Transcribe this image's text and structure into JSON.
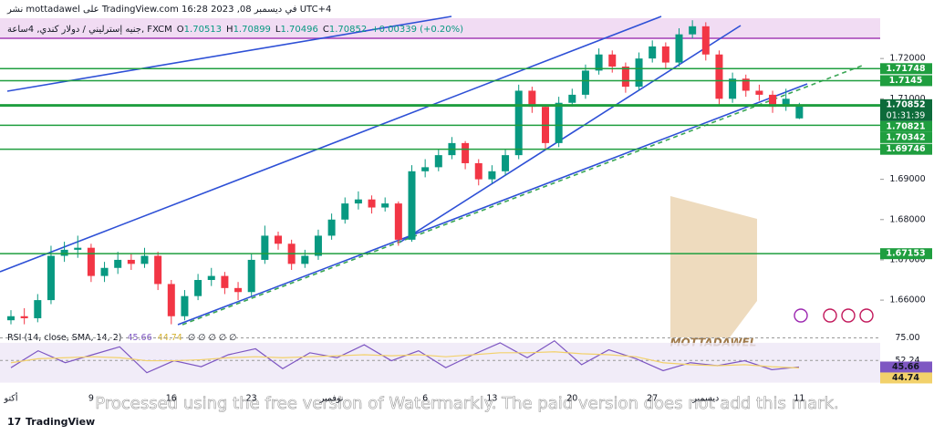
{
  "header": {
    "publisher": "نشر mottadawel على TradingView.com في ديسمبر 08, 2023 16:28 UTC+4",
    "symbol": "جنيه إسترليني / دولار كندي, 4ساعة, FXCM",
    "ohlc": [
      {
        "key": "O",
        "value": "1.70513"
      },
      {
        "key": "H",
        "value": "1.70899"
      },
      {
        "key": "L",
        "value": "1.70496"
      },
      {
        "key": "C",
        "value": "1.70852"
      }
    ],
    "change": "+0.00339 (+0.20%)"
  },
  "watermark": "Processed using the free version of Watermarkly. The paid version does not add this mark.",
  "logo": "MOTTADAWEL",
  "branding": "TradingView",
  "chart_data": [
    {
      "type": "candlestick",
      "color_up": "#089981",
      "color_down": "#f23645",
      "categories": [
        "أكتو",
        null,
        null,
        null,
        null,
        null,
        "9",
        null,
        null,
        null,
        null,
        null,
        "16",
        null,
        null,
        null,
        null,
        null,
        "23",
        null,
        null,
        null,
        null,
        null,
        "نوفمبر",
        null,
        null,
        null,
        null,
        null,
        null,
        "6",
        null,
        null,
        null,
        null,
        "13",
        null,
        null,
        null,
        null,
        null,
        "20",
        null,
        null,
        null,
        null,
        null,
        "27",
        null,
        null,
        null,
        "ديسمبر",
        null,
        null,
        null,
        null,
        null,
        null,
        "11"
      ],
      "candles": [
        [
          1.655,
          1.6575,
          1.654,
          1.656
        ],
        [
          1.656,
          1.658,
          1.654,
          1.6555
        ],
        [
          1.6555,
          1.6615,
          1.6545,
          1.66
        ],
        [
          1.66,
          1.6735,
          1.659,
          1.671
        ],
        [
          1.671,
          1.6745,
          1.6695,
          1.6725
        ],
        [
          1.6725,
          1.676,
          1.6705,
          1.673
        ],
        [
          1.673,
          1.674,
          1.6645,
          1.666
        ],
        [
          1.666,
          1.6695,
          1.6645,
          1.668
        ],
        [
          1.668,
          1.672,
          1.6665,
          1.67
        ],
        [
          1.67,
          1.6715,
          1.6675,
          1.669
        ],
        [
          1.669,
          1.673,
          1.668,
          1.671
        ],
        [
          1.671,
          1.672,
          1.6625,
          1.664
        ],
        [
          1.664,
          1.665,
          1.654,
          1.656
        ],
        [
          1.656,
          1.6625,
          1.655,
          1.661
        ],
        [
          1.661,
          1.6665,
          1.66,
          1.665
        ],
        [
          1.665,
          1.668,
          1.6635,
          1.666
        ],
        [
          1.666,
          1.667,
          1.6615,
          1.663
        ],
        [
          1.663,
          1.6645,
          1.66,
          1.662
        ],
        [
          1.662,
          1.6715,
          1.661,
          1.67
        ],
        [
          1.67,
          1.6785,
          1.669,
          1.676
        ],
        [
          1.676,
          1.677,
          1.6725,
          1.674
        ],
        [
          1.674,
          1.675,
          1.6675,
          1.669
        ],
        [
          1.669,
          1.6725,
          1.668,
          1.671
        ],
        [
          1.671,
          1.6775,
          1.67,
          1.676
        ],
        [
          1.676,
          1.6815,
          1.675,
          1.68
        ],
        [
          1.68,
          1.6855,
          1.679,
          1.684
        ],
        [
          1.684,
          1.687,
          1.6825,
          1.685
        ],
        [
          1.685,
          1.686,
          1.6815,
          1.683
        ],
        [
          1.683,
          1.6855,
          1.682,
          1.684
        ],
        [
          1.684,
          1.6845,
          1.6735,
          1.675
        ],
        [
          1.675,
          1.6935,
          1.6745,
          1.692
        ],
        [
          1.692,
          1.695,
          1.6905,
          1.693
        ],
        [
          1.693,
          1.6975,
          1.692,
          1.696
        ],
        [
          1.696,
          1.7005,
          1.695,
          1.699
        ],
        [
          1.699,
          1.6995,
          1.6925,
          1.694
        ],
        [
          1.694,
          1.695,
          1.6885,
          1.69
        ],
        [
          1.69,
          1.6935,
          1.689,
          1.692
        ],
        [
          1.692,
          1.6975,
          1.691,
          1.696
        ],
        [
          1.696,
          1.7135,
          1.695,
          1.712
        ],
        [
          1.712,
          1.713,
          1.7065,
          1.708
        ],
        [
          1.708,
          1.7085,
          1.6975,
          1.699
        ],
        [
          1.699,
          1.7105,
          1.698,
          1.709
        ],
        [
          1.709,
          1.7125,
          1.708,
          1.711
        ],
        [
          1.711,
          1.7185,
          1.71,
          1.717
        ],
        [
          1.717,
          1.7225,
          1.716,
          1.721
        ],
        [
          1.721,
          1.722,
          1.7165,
          1.718
        ],
        [
          1.718,
          1.719,
          1.7115,
          1.713
        ],
        [
          1.713,
          1.7215,
          1.712,
          1.72
        ],
        [
          1.72,
          1.7245,
          1.719,
          1.723
        ],
        [
          1.723,
          1.724,
          1.7175,
          1.719
        ],
        [
          1.719,
          1.7275,
          1.718,
          1.726
        ],
        [
          1.726,
          1.7295,
          1.725,
          1.728
        ],
        [
          1.728,
          1.729,
          1.7195,
          1.721
        ],
        [
          1.721,
          1.722,
          1.7085,
          1.71
        ],
        [
          1.71,
          1.7165,
          1.709,
          1.715
        ],
        [
          1.715,
          1.716,
          1.7105,
          1.712
        ],
        [
          1.712,
          1.7135,
          1.7095,
          1.711
        ],
        [
          1.711,
          1.712,
          1.7065,
          1.708
        ],
        [
          1.708,
          1.7125,
          1.707,
          1.71
        ],
        [
          1.70513,
          1.70899,
          1.70496,
          1.70852
        ]
      ],
      "ylim": [
        1.653,
        1.73
      ],
      "yticks": [
        {
          "value": 1.66,
          "label": "1.66000"
        },
        {
          "value": 1.67,
          "label": "1.67000"
        },
        {
          "value": 1.68,
          "label": "1.68000"
        },
        {
          "value": 1.69,
          "label": "1.69000"
        },
        {
          "value": 1.7,
          "label": "1.70000"
        },
        {
          "value": 1.71,
          "label": "1.71000"
        },
        {
          "value": 1.72,
          "label": "1.72000"
        }
      ],
      "levels": [
        1.71748,
        1.7145,
        1.70821,
        1.70342,
        1.69746,
        1.67153
      ],
      "level_color": "#1f9e3f",
      "current": {
        "price": 1.70852,
        "countdown": "01:31:39",
        "color": "#0d6b3a"
      }
    },
    {
      "type": "line",
      "title": "RSI (14, close, SMA, 14, 2)",
      "extra": "∅ ∅ ∅ ∅ ∅",
      "series": [
        {
          "name": "RSI",
          "color": "#7e57c2",
          "values": [
            45,
            62,
            50,
            58,
            66,
            40,
            52,
            46,
            58,
            64,
            44,
            60,
            55,
            68,
            52,
            62,
            45,
            58,
            70,
            55,
            72,
            48,
            63,
            54,
            42,
            50,
            47,
            52,
            43,
            45.66
          ]
        },
        {
          "name": "SMA",
          "color": "#f2d16b",
          "values": [
            50,
            54,
            55,
            56,
            55,
            52,
            52,
            53,
            55,
            56,
            55,
            56,
            57,
            58,
            57,
            58,
            56,
            58,
            60,
            60,
            61,
            59,
            58,
            56,
            50,
            48,
            47,
            48,
            46,
            44.74
          ]
        }
      ],
      "ylim": [
        25,
        80
      ],
      "yticks": [
        {
          "value": 75,
          "label": "75.00"
        },
        {
          "value": 52.24,
          "label": "52.24"
        }
      ]
    }
  ]
}
